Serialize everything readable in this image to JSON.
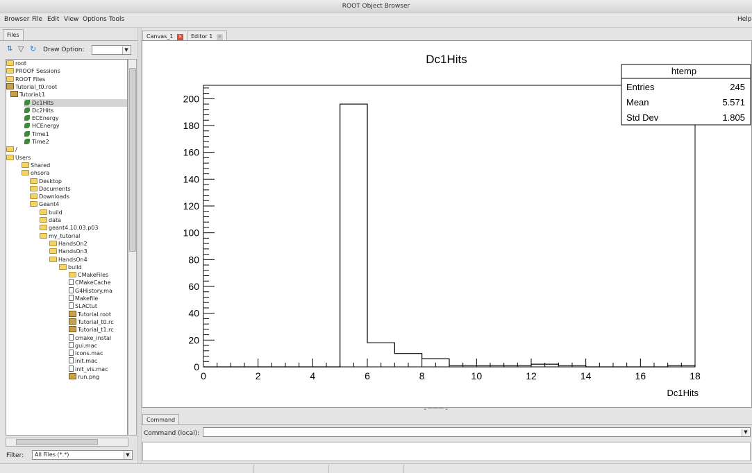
{
  "window": {
    "title": "ROOT Object Browser"
  },
  "menu": {
    "browser": "Browser",
    "file": "File",
    "edit": "Edit",
    "view": "View",
    "options": "Options",
    "tools": "Tools",
    "help": "Help"
  },
  "left": {
    "tab": "Files",
    "draw_option_label": "Draw Option:",
    "draw_option_value": "",
    "filter_label": "Filter:",
    "filter_value": "All Files (*.*)",
    "tree": [
      {
        "label": "root",
        "icon": "folder-icon"
      },
      {
        "label": "PROOF Sessions",
        "icon": "folder-icon"
      },
      {
        "label": "ROOT Files",
        "icon": "folder-icon"
      },
      {
        "label": "Tutorial_t0.root",
        "icon": "root-file-icon"
      },
      {
        "label": "Tutorial;1",
        "icon": "tree-icon"
      },
      {
        "label": "Dc1Hits",
        "icon": "leaf-icon"
      },
      {
        "label": "Dc2Hits",
        "icon": "leaf-icon"
      },
      {
        "label": "ECEnergy",
        "icon": "leaf-icon"
      },
      {
        "label": "HCEnergy",
        "icon": "leaf-icon"
      },
      {
        "label": "Time1",
        "icon": "leaf-icon"
      },
      {
        "label": "Time2",
        "icon": "leaf-icon"
      },
      {
        "label": "/",
        "icon": "folder-icon"
      },
      {
        "label": "Users",
        "icon": "folder-icon"
      },
      {
        "label": "Shared",
        "icon": "folder-icon"
      },
      {
        "label": "ohsora",
        "icon": "folder-icon"
      },
      {
        "label": "Desktop",
        "icon": "folder-icon"
      },
      {
        "label": "Documents",
        "icon": "folder-icon"
      },
      {
        "label": "Downloads",
        "icon": "folder-icon"
      },
      {
        "label": "Geant4",
        "icon": "folder-icon"
      },
      {
        "label": "build",
        "icon": "folder-icon"
      },
      {
        "label": "data",
        "icon": "folder-icon"
      },
      {
        "label": "geant4.10.03.p03",
        "icon": "folder-icon"
      },
      {
        "label": "my_tutorial",
        "icon": "folder-icon"
      },
      {
        "label": "HandsOn2",
        "icon": "folder-icon"
      },
      {
        "label": "HandsOn3",
        "icon": "folder-icon"
      },
      {
        "label": "HandsOn4",
        "icon": "folder-icon"
      },
      {
        "label": "build",
        "icon": "folder-icon"
      },
      {
        "label": "CMakeFiles",
        "icon": "folder-icon"
      },
      {
        "label": "CMakeCache",
        "icon": "file-icon"
      },
      {
        "label": "G4History.ma",
        "icon": "file-icon"
      },
      {
        "label": "Makefile",
        "icon": "file-icon"
      },
      {
        "label": "SLACtut",
        "icon": "file-icon"
      },
      {
        "label": "Tutorial.root",
        "icon": "root-file-icon"
      },
      {
        "label": "Tutorial_t0.rc",
        "icon": "root-file-icon"
      },
      {
        "label": "Tutorial_t1.rc",
        "icon": "root-file-icon"
      },
      {
        "label": "cmake_instal",
        "icon": "file-icon"
      },
      {
        "label": "gui.mac",
        "icon": "file-icon"
      },
      {
        "label": "icons.mac",
        "icon": "file-icon"
      },
      {
        "label": "init.mac",
        "icon": "file-icon"
      },
      {
        "label": "init_vis.mac",
        "icon": "file-icon"
      },
      {
        "label": "run.png",
        "icon": "root-file-icon"
      }
    ]
  },
  "tabs": {
    "canvas": "Canvas_1",
    "editor": "Editor 1"
  },
  "command": {
    "tab": "Command",
    "label": "Command (local):",
    "value": ""
  },
  "stats": {
    "title": "htemp",
    "rows": [
      {
        "label": "Entries",
        "value": "245"
      },
      {
        "label": "Mean",
        "value": "5.571"
      },
      {
        "label": "Std Dev",
        "value": "1.805"
      }
    ]
  },
  "chart_data": {
    "type": "bar",
    "title": "Dc1Hits",
    "xlabel": "Dc1Hits",
    "ylabel": "",
    "xlim": [
      0,
      18
    ],
    "ylim": [
      0,
      210
    ],
    "x_ticks": [
      0,
      2,
      4,
      6,
      8,
      10,
      12,
      14,
      16,
      18
    ],
    "y_ticks": [
      0,
      20,
      40,
      60,
      80,
      100,
      120,
      140,
      160,
      180,
      200
    ],
    "bin_edges": [
      0,
      1,
      2,
      3,
      4,
      5,
      6,
      7,
      8,
      9,
      10,
      11,
      12,
      13,
      14,
      15,
      16,
      17,
      18
    ],
    "values": [
      0,
      0,
      0,
      0,
      0,
      196,
      18,
      10,
      6,
      1,
      1,
      1,
      2,
      1,
      0,
      0,
      0,
      1
    ],
    "line_color": "#000000",
    "grid": false,
    "legend": "top-right"
  }
}
